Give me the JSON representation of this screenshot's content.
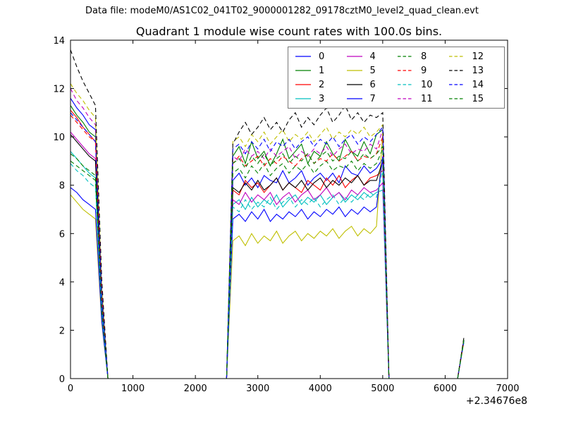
{
  "header": {
    "text": "Data file: modeM0/AS1C02_041T02_9000001282_09178cztM0_level2_quad_clean.evt"
  },
  "chart_data": {
    "type": "line",
    "title": "Quadrant 1 module wise count rates with 100.0s bins.",
    "xlabel": "",
    "ylabel": "",
    "bin_size_seconds": 100.0,
    "xlim": [
      0,
      7000
    ],
    "ylim": [
      0,
      14
    ],
    "x_offset_label": "+2.34676e8",
    "grid": false,
    "x_ticks": [
      0,
      1000,
      2000,
      3000,
      4000,
      5000,
      6000,
      7000
    ],
    "x_tick_labels": [
      "0",
      "1000",
      "2000",
      "3000",
      "4000",
      "5000",
      "6000",
      "7000"
    ],
    "y_ticks": [
      0,
      2,
      4,
      6,
      8,
      10,
      12,
      14
    ],
    "y_tick_labels": [
      "0",
      "2",
      "4",
      "6",
      "8",
      "10",
      "12",
      "14"
    ],
    "legend": {
      "position": "upper center",
      "columns": 4,
      "order": "column-major",
      "labels": [
        "0",
        "1",
        "2",
        "3",
        "4",
        "5",
        "6",
        "7",
        "8",
        "9",
        "10",
        "11",
        "12",
        "13",
        "14",
        "15"
      ]
    },
    "x": [
      0,
      100,
      200,
      300,
      400,
      500,
      600,
      700,
      800,
      900,
      1000,
      1100,
      1200,
      1300,
      1400,
      1500,
      1600,
      1700,
      1800,
      1900,
      2000,
      2100,
      2200,
      2300,
      2400,
      2500,
      2600,
      2700,
      2800,
      2900,
      3000,
      3100,
      3200,
      3300,
      3400,
      3500,
      3600,
      3700,
      3800,
      3900,
      4000,
      4100,
      4200,
      4300,
      4400,
      4500,
      4600,
      4700,
      4800,
      4900,
      5000,
      5100,
      5200,
      5300,
      5400,
      5500,
      5600,
      5700,
      5800,
      5900,
      6000,
      6100,
      6200,
      6300
    ],
    "series": [
      {
        "name": "0",
        "color": "#0000ff",
        "linestyle": "solid",
        "values": [
          11.6,
          11.2,
          10.9,
          10.5,
          10.3,
          3.6,
          0,
          0,
          0,
          0,
          0,
          0,
          0,
          0,
          0,
          0,
          0,
          0,
          0,
          0,
          0,
          0,
          0,
          0,
          0,
          0,
          8.2,
          8.5,
          8.0,
          8.3,
          7.9,
          8.4,
          8.2,
          8.1,
          8.6,
          8.1,
          8.3,
          8.6,
          8.0,
          8.3,
          8.5,
          8.2,
          8.5,
          8.1,
          8.8,
          8.5,
          8.4,
          8.8,
          8.5,
          8.7,
          9.1,
          0,
          0,
          0,
          0,
          0,
          0,
          0,
          0,
          0,
          0,
          0,
          0,
          1.6
        ]
      },
      {
        "name": "1",
        "color": "#008000",
        "linestyle": "solid",
        "values": [
          11.3,
          10.9,
          10.6,
          10.2,
          10.0,
          3.5,
          0,
          0,
          0,
          0,
          0,
          0,
          0,
          0,
          0,
          0,
          0,
          0,
          0,
          0,
          0,
          0,
          0,
          0,
          0,
          0,
          9.2,
          9.6,
          8.9,
          9.8,
          9.1,
          9.4,
          8.8,
          9.3,
          9.9,
          9.1,
          9.4,
          9.7,
          8.9,
          9.4,
          9.2,
          9.8,
          9.3,
          9.0,
          9.9,
          9.4,
          9.2,
          9.8,
          9.3,
          10.1,
          10.3,
          0,
          0,
          0,
          0,
          0,
          0,
          0,
          0,
          0,
          0,
          0,
          0,
          1.6
        ]
      },
      {
        "name": "2",
        "color": "#ff0000",
        "linestyle": "solid",
        "values": [
          11.1,
          10.8,
          10.4,
          10.1,
          9.8,
          3.4,
          0,
          0,
          0,
          0,
          0,
          0,
          0,
          0,
          0,
          0,
          0,
          0,
          0,
          0,
          0,
          0,
          0,
          0,
          0,
          0,
          7.8,
          7.6,
          8.2,
          7.9,
          8.1,
          7.7,
          8.0,
          8.3,
          7.8,
          8.1,
          7.9,
          7.7,
          8.2,
          8.0,
          7.8,
          8.3,
          8.0,
          8.4,
          7.9,
          8.2,
          8.4,
          8.0,
          8.3,
          8.4,
          8.6,
          0,
          0,
          0,
          0,
          0,
          0,
          0,
          0,
          0,
          0,
          0,
          0,
          1.6
        ]
      },
      {
        "name": "3",
        "color": "#00bfbf",
        "linestyle": "solid",
        "values": [
          9.4,
          9.1,
          8.8,
          8.5,
          8.3,
          2.9,
          0,
          0,
          0,
          0,
          0,
          0,
          0,
          0,
          0,
          0,
          0,
          0,
          0,
          0,
          0,
          0,
          0,
          0,
          0,
          0,
          7.2,
          7.4,
          7.0,
          7.5,
          7.1,
          7.4,
          7.2,
          7.6,
          7.1,
          7.4,
          7.6,
          7.2,
          7.5,
          7.3,
          7.6,
          7.2,
          7.5,
          7.7,
          7.3,
          7.6,
          7.4,
          7.7,
          7.5,
          7.7,
          7.8,
          0,
          0,
          0,
          0,
          0,
          0,
          0,
          0,
          0,
          0,
          0,
          0,
          1.6
        ]
      },
      {
        "name": "4",
        "color": "#bf00bf",
        "linestyle": "solid",
        "values": [
          10.2,
          9.9,
          9.6,
          9.3,
          9.1,
          3.2,
          0,
          0,
          0,
          0,
          0,
          0,
          0,
          0,
          0,
          0,
          0,
          0,
          0,
          0,
          0,
          0,
          0,
          0,
          0,
          0,
          7.4,
          7.2,
          7.7,
          7.3,
          7.6,
          7.4,
          7.7,
          7.2,
          7.5,
          7.7,
          7.3,
          7.6,
          7.8,
          7.4,
          7.6,
          7.9,
          7.5,
          7.7,
          7.4,
          7.8,
          7.6,
          7.9,
          7.7,
          7.8,
          8.1,
          0,
          0,
          0,
          0,
          0,
          0,
          0,
          0,
          0,
          0,
          0,
          0,
          1.6
        ]
      },
      {
        "name": "5",
        "color": "#bfbf00",
        "linestyle": "solid",
        "values": [
          7.6,
          7.3,
          7.0,
          6.8,
          6.6,
          2.3,
          0,
          0,
          0,
          0,
          0,
          0,
          0,
          0,
          0,
          0,
          0,
          0,
          0,
          0,
          0,
          0,
          0,
          0,
          0,
          0,
          5.7,
          5.9,
          5.5,
          6.0,
          5.6,
          5.9,
          5.7,
          6.1,
          5.6,
          5.9,
          6.1,
          5.7,
          6.0,
          5.8,
          6.1,
          5.9,
          6.2,
          5.8,
          6.1,
          6.3,
          5.9,
          6.2,
          6.0,
          6.3,
          10.2,
          0,
          0,
          0,
          0,
          0,
          0,
          0,
          0,
          0,
          0,
          0,
          0,
          1.5
        ]
      },
      {
        "name": "6",
        "color": "#000000",
        "linestyle": "solid",
        "values": [
          10.1,
          9.8,
          9.5,
          9.2,
          9.0,
          3.1,
          0,
          0,
          0,
          0,
          0,
          0,
          0,
          0,
          0,
          0,
          0,
          0,
          0,
          0,
          0,
          0,
          0,
          0,
          0,
          0,
          7.9,
          7.7,
          8.1,
          7.8,
          8.2,
          7.8,
          8.0,
          8.3,
          7.8,
          8.1,
          7.9,
          8.2,
          7.8,
          8.1,
          8.3,
          7.9,
          8.2,
          8.0,
          8.3,
          8.1,
          8.4,
          8.0,
          8.2,
          8.2,
          9.0,
          0,
          0,
          0,
          0,
          0,
          0,
          0,
          0,
          0,
          0,
          0,
          0,
          1.6
        ]
      },
      {
        "name": "7",
        "color": "#0000ff",
        "linestyle": "solid",
        "values": [
          7.9,
          7.7,
          7.4,
          7.2,
          7.0,
          2.4,
          0,
          0,
          0,
          0,
          0,
          0,
          0,
          0,
          0,
          0,
          0,
          0,
          0,
          0,
          0,
          0,
          0,
          0,
          0,
          0,
          6.6,
          6.8,
          6.5,
          6.9,
          6.6,
          7.0,
          6.5,
          6.8,
          6.6,
          6.9,
          6.7,
          7.0,
          6.6,
          6.9,
          6.7,
          7.0,
          6.8,
          7.1,
          6.7,
          7.0,
          6.8,
          7.1,
          6.9,
          7.1,
          9.2,
          0,
          0,
          0,
          0,
          0,
          0,
          0,
          0,
          0,
          0,
          0,
          0,
          1.6
        ]
      },
      {
        "name": "8",
        "color": "#008000",
        "linestyle": "dashed",
        "values": [
          9.3,
          9.1,
          8.8,
          8.6,
          8.4,
          2.9,
          0,
          0,
          0,
          0,
          0,
          0,
          0,
          0,
          0,
          0,
          0,
          0,
          0,
          0,
          0,
          0,
          0,
          0,
          0,
          0,
          8.5,
          8.7,
          8.3,
          8.8,
          8.5,
          8.9,
          8.4,
          8.7,
          8.9,
          8.5,
          8.8,
          8.6,
          8.9,
          8.5,
          8.8,
          9.0,
          8.6,
          8.8,
          8.7,
          9.0,
          8.6,
          8.9,
          8.7,
          8.9,
          9.5,
          0,
          0,
          0,
          0,
          0,
          0,
          0,
          0,
          0,
          0,
          0,
          0,
          1.6
        ]
      },
      {
        "name": "9",
        "color": "#ff0000",
        "linestyle": "dashed",
        "values": [
          10.9,
          10.6,
          10.3,
          10.0,
          9.8,
          3.4,
          0,
          0,
          0,
          0,
          0,
          0,
          0,
          0,
          0,
          0,
          0,
          0,
          0,
          0,
          0,
          0,
          0,
          0,
          0,
          0,
          8.9,
          9.2,
          8.8,
          9.0,
          9.2,
          8.8,
          9.1,
          8.9,
          9.2,
          9.0,
          8.8,
          9.1,
          9.3,
          8.9,
          9.1,
          9.0,
          9.3,
          9.0,
          9.2,
          9.4,
          9.0,
          9.2,
          9.1,
          9.3,
          10.0,
          0,
          0,
          0,
          0,
          0,
          0,
          0,
          0,
          0,
          0,
          0,
          0,
          1.6
        ]
      },
      {
        "name": "10",
        "color": "#00bfbf",
        "linestyle": "dashed",
        "values": [
          8.9,
          8.6,
          8.4,
          8.1,
          7.9,
          2.8,
          0,
          0,
          0,
          0,
          0,
          0,
          0,
          0,
          0,
          0,
          0,
          0,
          0,
          0,
          0,
          0,
          0,
          0,
          0,
          0,
          7.1,
          6.9,
          7.4,
          7.0,
          7.3,
          7.1,
          7.5,
          7.0,
          7.3,
          7.5,
          7.1,
          7.4,
          7.2,
          7.5,
          7.1,
          7.4,
          7.6,
          7.2,
          7.5,
          7.3,
          7.6,
          7.4,
          7.7,
          7.5,
          8.6,
          0,
          0,
          0,
          0,
          0,
          0,
          0,
          0,
          0,
          0,
          0,
          0,
          1.5
        ]
      },
      {
        "name": "11",
        "color": "#bf00bf",
        "linestyle": "dashed",
        "values": [
          12.0,
          11.5,
          11.2,
          10.8,
          10.5,
          3.7,
          0,
          0,
          0,
          0,
          0,
          0,
          0,
          0,
          0,
          0,
          0,
          0,
          0,
          0,
          0,
          0,
          0,
          0,
          0,
          0,
          9.2,
          9.0,
          9.5,
          9.2,
          9.4,
          9.1,
          9.5,
          9.2,
          9.4,
          9.6,
          9.1,
          9.4,
          9.2,
          9.5,
          9.3,
          9.6,
          9.2,
          9.5,
          9.7,
          9.3,
          9.5,
          9.4,
          9.7,
          9.5,
          10.3,
          0,
          0,
          0,
          0,
          0,
          0,
          0,
          0,
          0,
          0,
          0,
          0,
          1.6
        ]
      },
      {
        "name": "12",
        "color": "#bfbf00",
        "linestyle": "dashed",
        "values": [
          12.2,
          11.8,
          11.5,
          11.1,
          10.8,
          3.8,
          0,
          0,
          0,
          0,
          0,
          0,
          0,
          0,
          0,
          0,
          0,
          0,
          0,
          0,
          0,
          0,
          0,
          0,
          0,
          0,
          9.8,
          10.0,
          9.6,
          10.1,
          9.8,
          10.2,
          9.7,
          10.0,
          10.3,
          9.8,
          10.1,
          9.9,
          10.2,
          9.8,
          10.1,
          10.4,
          9.9,
          10.2,
          10.0,
          10.3,
          10.1,
          10.4,
          10.0,
          10.2,
          10.5,
          0,
          0,
          0,
          0,
          0,
          0,
          0,
          0,
          0,
          0,
          0,
          0,
          1.7
        ]
      },
      {
        "name": "13",
        "color": "#000000",
        "linestyle": "dashed",
        "values": [
          13.6,
          12.9,
          12.3,
          11.8,
          11.3,
          4.1,
          0,
          0,
          0,
          0,
          0,
          0,
          0,
          0,
          0,
          0,
          0,
          0,
          0,
          0,
          0,
          0,
          0,
          0,
          0,
          0,
          9.7,
          10.2,
          10.6,
          10.1,
          10.4,
          10.8,
          10.3,
          10.6,
          10.2,
          10.7,
          11.0,
          10.4,
          10.8,
          10.5,
          10.9,
          11.2,
          10.6,
          10.9,
          11.3,
          10.7,
          11.0,
          10.6,
          10.9,
          10.8,
          11.0,
          0,
          0,
          0,
          0,
          0,
          0,
          0,
          0,
          0,
          0,
          0,
          0,
          1.7
        ]
      },
      {
        "name": "14",
        "color": "#0000ff",
        "linestyle": "dashed",
        "values": [
          11.0,
          10.7,
          10.4,
          10.1,
          9.8,
          3.4,
          0,
          0,
          0,
          0,
          0,
          0,
          0,
          0,
          0,
          0,
          0,
          0,
          0,
          0,
          0,
          0,
          0,
          0,
          0,
          0,
          9.5,
          9.7,
          9.3,
          9.8,
          9.5,
          9.9,
          9.4,
          9.8,
          9.6,
          9.9,
          9.5,
          9.8,
          10.0,
          9.6,
          9.9,
          9.7,
          10.0,
          9.6,
          9.9,
          10.1,
          9.7,
          10.0,
          9.8,
          10.1,
          10.4,
          0,
          0,
          0,
          0,
          0,
          0,
          0,
          0,
          0,
          0,
          0,
          0,
          1.6
        ]
      },
      {
        "name": "15",
        "color": "#008000",
        "linestyle": "dashed",
        "values": [
          9.0,
          8.8,
          8.6,
          8.4,
          8.2,
          2.8,
          0,
          0,
          0,
          0,
          0,
          0,
          0,
          0,
          0,
          0,
          0,
          0,
          0,
          0,
          0,
          0,
          0,
          0,
          0,
          0,
          8.9,
          9.1,
          8.7,
          9.2,
          8.9,
          9.3,
          8.8,
          9.1,
          9.3,
          8.9,
          9.2,
          9.0,
          9.3,
          8.9,
          9.2,
          9.4,
          9.0,
          9.2,
          9.1,
          9.4,
          9.0,
          9.3,
          9.1,
          9.3,
          9.6,
          0,
          0,
          0,
          0,
          0,
          0,
          0,
          0,
          0,
          0,
          0,
          0,
          1.6
        ]
      }
    ],
    "axes_colors": {
      "spine": "#000000",
      "tick_label": "#000000",
      "background": "#ffffff"
    }
  }
}
